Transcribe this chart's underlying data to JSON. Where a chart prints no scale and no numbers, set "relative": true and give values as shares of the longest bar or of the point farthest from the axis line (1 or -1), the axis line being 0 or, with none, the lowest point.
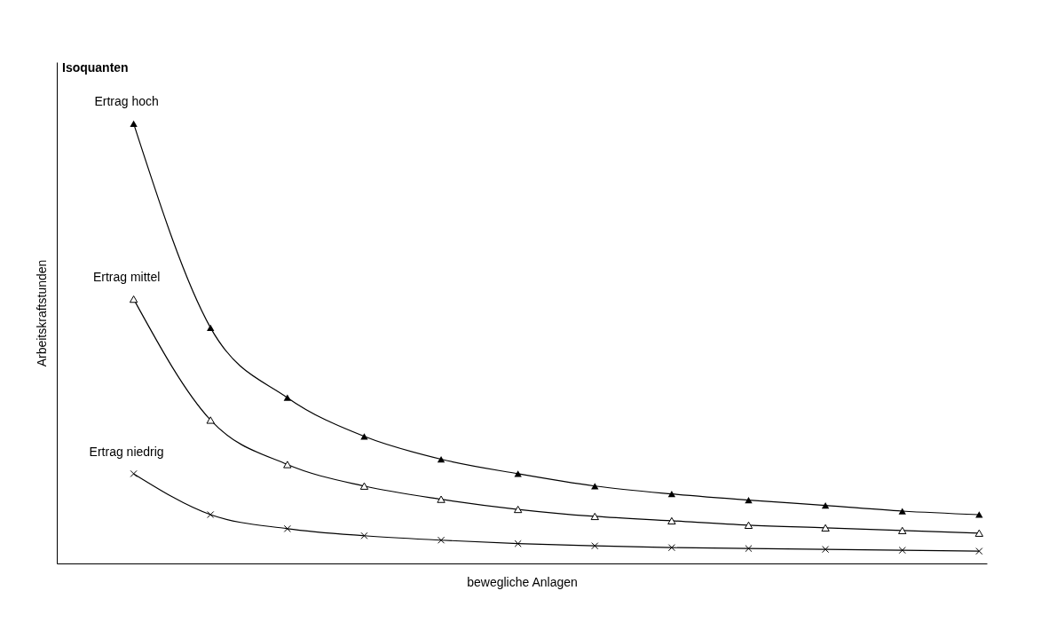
{
  "chart_data": {
    "type": "line",
    "title": "Isoquanten",
    "xlabel": "bewegliche Anlagen",
    "ylabel": "Arbeitskraftstunden",
    "relative": true,
    "categories": [
      null,
      null,
      null,
      null,
      null,
      null,
      null,
      null,
      null,
      null,
      null,
      null
    ],
    "grid": false,
    "legend": false,
    "line_style": "solid",
    "series": [
      {
        "name": "Ertrag hoch",
        "color": "#000000",
        "marker": "triangle",
        "values": [
          1,
          0.536,
          0.377,
          0.289,
          0.237,
          0.204,
          0.176,
          0.158,
          0.144,
          0.132,
          0.119,
          0.111
        ]
      },
      {
        "name": "Ertrag mittel",
        "color": "#000000",
        "marker": "triangle",
        "values": [
          0.601,
          0.326,
          0.225,
          0.176,
          0.146,
          0.123,
          0.107,
          0.097,
          0.087,
          0.081,
          0.075,
          0.069
        ]
      },
      {
        "name": "Ertrag niedrig",
        "color": "#000000",
        "marker": "cross",
        "values": [
          0.204,
          0.111,
          0.079,
          0.063,
          0.053,
          0.045,
          0.04,
          0.036,
          0.034,
          0.032,
          0.03,
          0.028
        ]
      }
    ]
  }
}
